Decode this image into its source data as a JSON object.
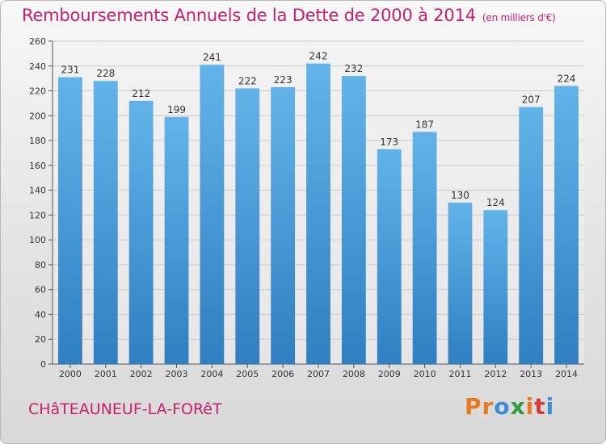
{
  "header": {
    "title": "Remboursements Annuels de la Dette de 2000 à 2014",
    "unit_note": "(en milliers d'€)"
  },
  "footer": {
    "commune_name": "CHâTEAUNEUF-LA-FORêT",
    "logo_text": "Proxiti"
  },
  "colors": {
    "bar_top": "#63b3ea",
    "bar_bottom": "#2f7fc2",
    "title": "#c81f6a",
    "grid": "#cccccc"
  },
  "chart_data": {
    "type": "bar",
    "title": "Remboursements Annuels de la Dette de 2000 à 2014",
    "subtitle": "(en milliers d'€)",
    "xlabel": "",
    "ylabel": "",
    "categories": [
      "2000",
      "2001",
      "2002",
      "2003",
      "2004",
      "2005",
      "2006",
      "2007",
      "2008",
      "2009",
      "2010",
      "2011",
      "2012",
      "2013",
      "2014"
    ],
    "values": [
      231,
      228,
      212,
      199,
      241,
      222,
      223,
      242,
      232,
      173,
      187,
      130,
      124,
      207,
      224
    ],
    "ylim": [
      0,
      260
    ],
    "yticks": [
      0,
      20,
      40,
      60,
      80,
      100,
      120,
      140,
      160,
      180,
      200,
      220,
      240,
      260
    ],
    "grid": true,
    "legend": "none"
  }
}
